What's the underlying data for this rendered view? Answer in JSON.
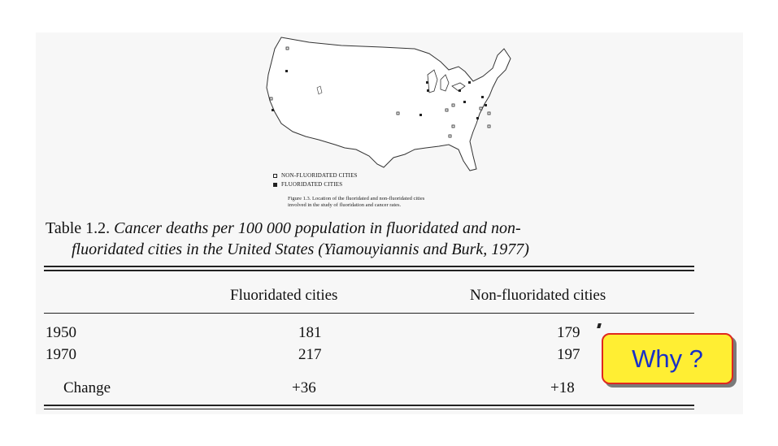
{
  "figure": {
    "legend": {
      "non_fluoridated": "NON-FLUORIDATED CITIES",
      "fluoridated": "FLUORIDATED CITIES"
    },
    "caption_line1": "Figure 1.3.  Location of the fluoridated and non-fluoridated cities",
    "caption_line2": "involved in the study of fluoridation and cancer rates."
  },
  "table": {
    "number": "Table 1.2.",
    "title_line1": "Cancer deaths per 100 000 population in fluoridated and non-",
    "title_line2": "fluoridated cities in the United States (Yiamouyiannis and Burk, 1977)",
    "headers": [
      "",
      "Fluoridated cities",
      "Non-fluoridated cities"
    ],
    "rows": [
      [
        "1950",
        "181",
        "179"
      ],
      [
        "1970",
        "217",
        "197"
      ],
      [
        "Change",
        "+36",
        "+18"
      ]
    ]
  },
  "callout": {
    "label": "Why ?",
    "fill_color": "#ffee33",
    "border_color": "#e0281e",
    "text_color": "#1830c8"
  }
}
